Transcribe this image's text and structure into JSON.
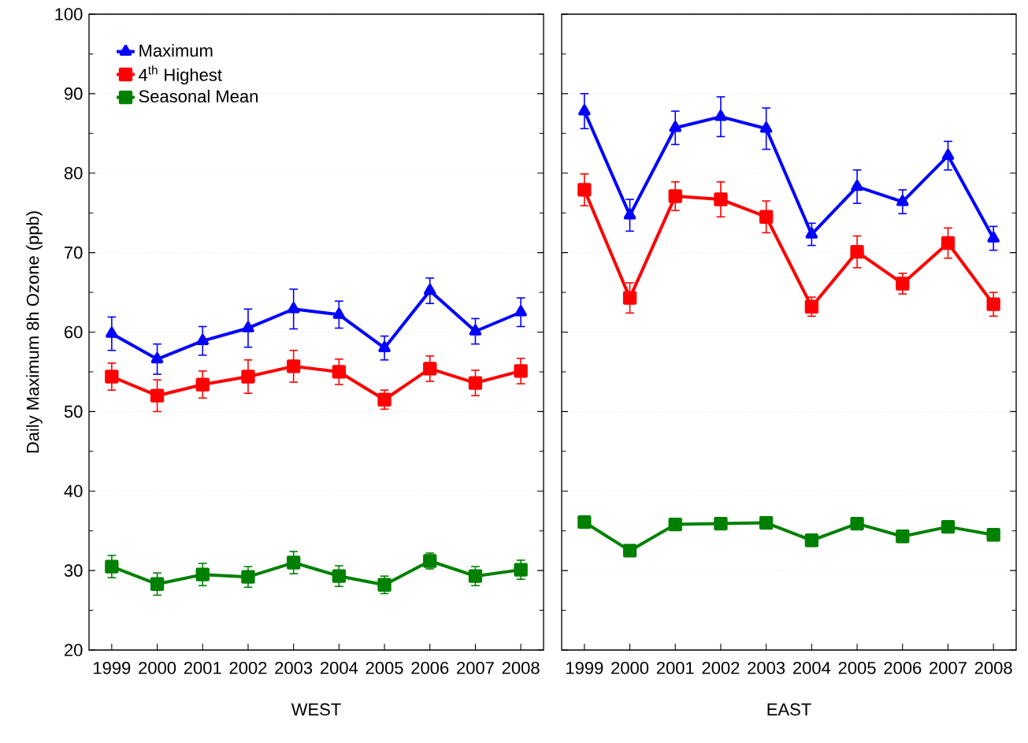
{
  "chart_data": [
    {
      "type": "line",
      "xlabel": "WEST",
      "ylabel": "Daily Maximum 8h Ozone (ppb)",
      "x": [
        1999,
        2000,
        2001,
        2002,
        2003,
        2004,
        2005,
        2006,
        2007,
        2008
      ],
      "series": [
        {
          "name": "Maximum",
          "color": "#0000ff",
          "marker": "triangle",
          "values": [
            59.8,
            56.6,
            58.9,
            60.5,
            62.9,
            62.2,
            58.0,
            65.2,
            60.1,
            62.5
          ],
          "errors": [
            2.1,
            1.9,
            1.8,
            2.4,
            2.5,
            1.7,
            1.5,
            1.6,
            1.6,
            1.8
          ]
        },
        {
          "name": "4$^{th}$ Highest",
          "color": "#ff0000",
          "marker": "square",
          "values": [
            54.4,
            52.0,
            53.4,
            54.4,
            55.7,
            55.0,
            51.5,
            55.4,
            53.6,
            55.1
          ],
          "errors": [
            1.7,
            2.0,
            1.7,
            2.1,
            2.0,
            1.6,
            1.2,
            1.6,
            1.6,
            1.6
          ]
        },
        {
          "name": "Seasonal Mean",
          "color": "#008000",
          "marker": "square",
          "values": [
            30.5,
            28.3,
            29.5,
            29.2,
            31.0,
            29.3,
            28.2,
            31.2,
            29.3,
            30.1
          ],
          "errors": [
            1.4,
            1.4,
            1.4,
            1.3,
            1.4,
            1.3,
            1.1,
            1.0,
            1.2,
            1.2
          ]
        }
      ],
      "xlim": [
        1998.5,
        2008.5
      ],
      "ylim": [
        20,
        100
      ],
      "xticks": [
        1999,
        2000,
        2001,
        2002,
        2003,
        2004,
        2005,
        2006,
        2007,
        2008
      ],
      "yticks": [
        20,
        30,
        40,
        50,
        60,
        70,
        80,
        90,
        100
      ],
      "grid": "y",
      "legend": "top left"
    },
    {
      "type": "line",
      "xlabel": "EAST",
      "x": [
        1999,
        2000,
        2001,
        2002,
        2003,
        2004,
        2005,
        2006,
        2007,
        2008
      ],
      "series": [
        {
          "color": "#0000ff",
          "marker": "triangle",
          "values": [
            87.8,
            74.7,
            85.7,
            87.1,
            85.6,
            72.3,
            78.3,
            76.4,
            82.2,
            71.8
          ],
          "errors": [
            2.2,
            2.0,
            2.1,
            2.5,
            2.6,
            1.4,
            2.1,
            1.5,
            1.8,
            1.5
          ]
        },
        {
          "color": "#ff0000",
          "marker": "square",
          "values": [
            77.9,
            64.3,
            77.1,
            76.7,
            74.5,
            63.2,
            70.1,
            66.1,
            71.2,
            63.5
          ],
          "errors": [
            2.0,
            1.9,
            1.8,
            2.2,
            2.0,
            1.2,
            2.0,
            1.3,
            1.9,
            1.5
          ]
        },
        {
          "color": "#008000",
          "marker": "square",
          "values": [
            36.1,
            32.5,
            35.8,
            35.9,
            36.0,
            33.8,
            35.9,
            34.3,
            35.5,
            34.5
          ],
          "errors": [
            0.5,
            0.5,
            0.4,
            0.4,
            0.4,
            0.4,
            0.4,
            0.4,
            0.4,
            0.4
          ]
        }
      ],
      "xlim": [
        1998.5,
        2008.5
      ],
      "ylim": [
        20,
        100
      ],
      "xticks": [
        1999,
        2000,
        2001,
        2002,
        2003,
        2004,
        2005,
        2006,
        2007,
        2008
      ],
      "yticks": [
        20,
        30,
        40,
        50,
        60,
        70,
        80,
        90,
        100
      ],
      "grid": "y",
      "tick_labels": "x"
    }
  ]
}
